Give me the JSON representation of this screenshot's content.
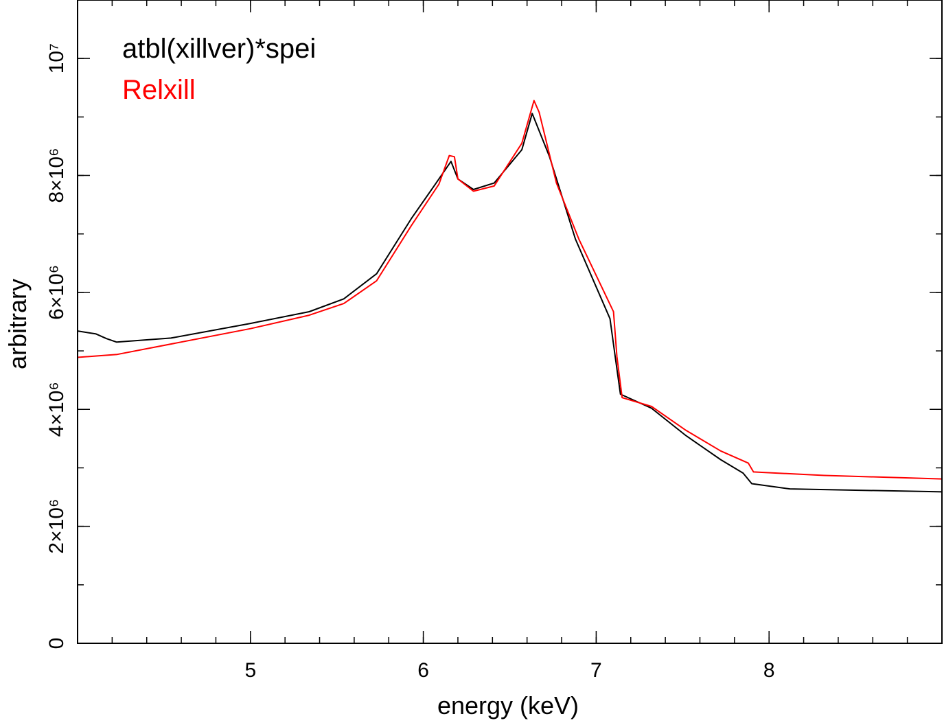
{
  "chart_data": {
    "type": "line",
    "title": "",
    "xlabel": "energy (keV)",
    "ylabel": "arbitrary",
    "xlim": [
      4.0,
      9.0
    ],
    "ylim": [
      0,
      11000000
    ],
    "xscale": "linear",
    "yscale": "linear",
    "grid": false,
    "legend_placement": "top-left",
    "x_ticks": [
      {
        "value": 5,
        "label": "5"
      },
      {
        "value": 6,
        "label": "6"
      },
      {
        "value": 7,
        "label": "7"
      },
      {
        "value": 8,
        "label": "8"
      }
    ],
    "x_minor_step": 0.2,
    "y_ticks": [
      {
        "value": 0,
        "label": "0"
      },
      {
        "value": 2000000,
        "label": "2×10⁶"
      },
      {
        "value": 4000000,
        "label": "4×10⁶"
      },
      {
        "value": 6000000,
        "label": "6×10⁶"
      },
      {
        "value": 8000000,
        "label": "8×10⁶"
      },
      {
        "value": 10000000,
        "label": "10⁷"
      }
    ],
    "y_minor_step": 1000000,
    "series": [
      {
        "name": "atbl(xillver)*spei",
        "color": "#000000",
        "x": [
          4.0,
          4.107,
          4.167,
          4.226,
          4.54,
          5.0,
          5.34,
          5.54,
          5.73,
          5.93,
          6.09,
          6.16,
          6.2,
          6.29,
          6.41,
          6.57,
          6.63,
          6.73,
          6.88,
          7.08,
          7.11,
          7.14,
          7.32,
          7.52,
          7.72,
          7.85,
          7.9,
          8.12,
          9.0
        ],
        "y": [
          5340000,
          5290000,
          5210000,
          5150000,
          5220000,
          5470000,
          5670000,
          5890000,
          6320000,
          7260000,
          7940000,
          8240000,
          7940000,
          7760000,
          7870000,
          8440000,
          9060000,
          8320000,
          6910000,
          5550000,
          4900000,
          4260000,
          4020000,
          3550000,
          3140000,
          2910000,
          2730000,
          2640000,
          2590000
        ]
      },
      {
        "name": "Relxill",
        "color": "#ff0000",
        "x": [
          4.0,
          4.23,
          5.0,
          5.34,
          5.54,
          5.73,
          5.93,
          6.09,
          6.15,
          6.18,
          6.2,
          6.29,
          6.41,
          6.57,
          6.64,
          6.67,
          6.77,
          6.9,
          7.1,
          7.12,
          7.15,
          7.32,
          7.52,
          7.72,
          7.88,
          7.91,
          8.32,
          9.0
        ],
        "y": [
          4890000,
          4940000,
          5380000,
          5610000,
          5810000,
          6200000,
          7140000,
          7850000,
          8340000,
          8320000,
          7940000,
          7730000,
          7820000,
          8550000,
          9280000,
          9080000,
          7870000,
          6910000,
          5670000,
          4900000,
          4200000,
          4050000,
          3640000,
          3290000,
          3080000,
          2930000,
          2870000,
          2810000
        ]
      }
    ]
  }
}
